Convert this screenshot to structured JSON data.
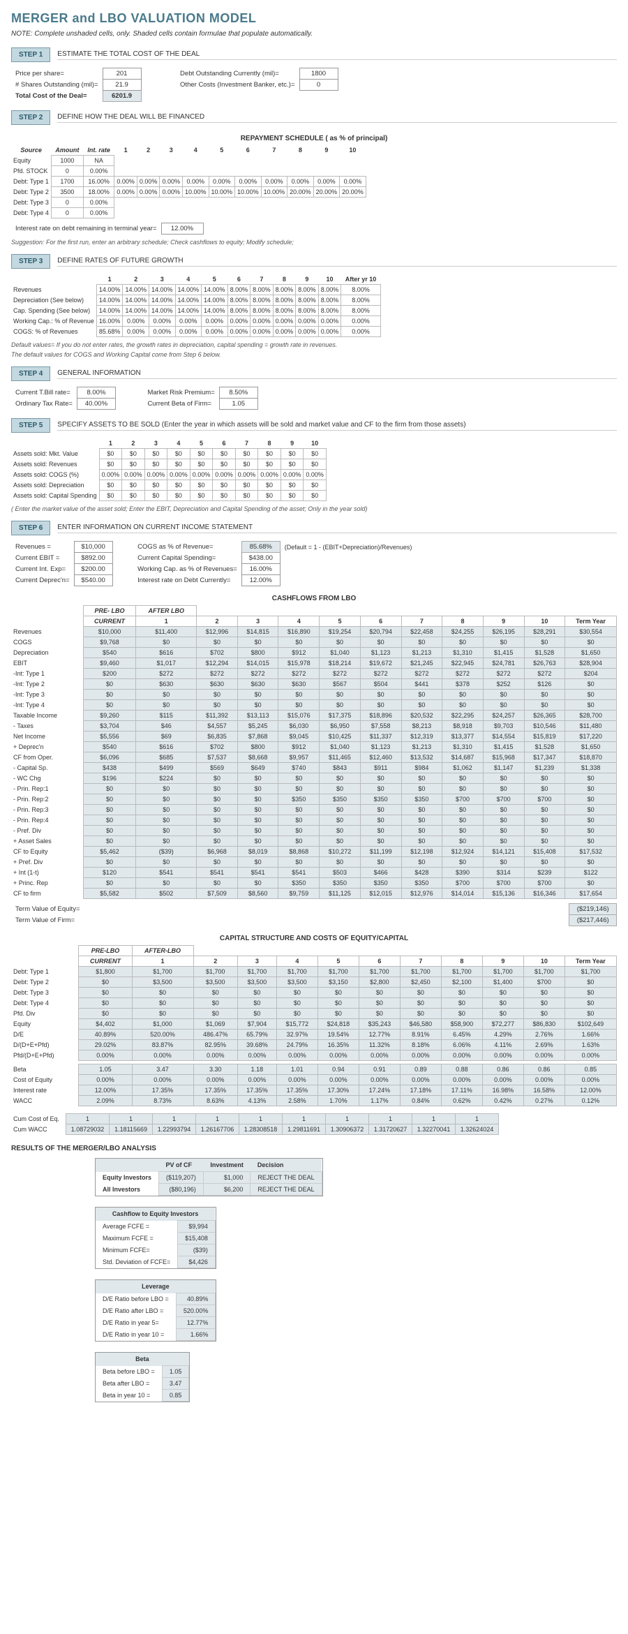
{
  "title": "MERGER and LBO VALUATION MODEL",
  "note": "NOTE: Complete unshaded cells, only.  Shaded cells contain formulae that populate automatically.",
  "steps": {
    "s1": {
      "label": "STEP 1",
      "title": "ESTIMATE THE TOTAL COST OF THE DEAL"
    },
    "s2": {
      "label": "STEP 2",
      "title": "DEFINE HOW THE DEAL WILL BE FINANCED"
    },
    "s3": {
      "label": "STEP 3",
      "title": "DEFINE RATES OF FUTURE GROWTH"
    },
    "s4": {
      "label": "STEP 4",
      "title": "GENERAL INFORMATION"
    },
    "s5": {
      "label": "STEP 5",
      "title": "SPECIFY  ASSETS TO BE SOLD (Enter the year in which assets will be sold and market value and CF to the firm from those assets)"
    },
    "s6": {
      "label": "STEP 6",
      "title": "ENTER INFORMATION ON CURRENT INCOME STATEMENT"
    }
  },
  "step1": {
    "pps_label": "Price per share=",
    "pps": "201",
    "shares_label": "# Shares Outstanding (mil)=",
    "shares": "21.9",
    "total_label": "Total Cost of the Deal=",
    "total": "6201.9",
    "debt_label": "Debt Outstanding Currently (mil)=",
    "debt": "1800",
    "other_label": "Other Costs (Investment Banker, etc.)=",
    "other": "0"
  },
  "step2": {
    "repay_hdr": "REPAYMENT SCHEDULE ( as % of principal)",
    "cols": [
      "Source",
      "Amount",
      "Int. rate",
      "1",
      "2",
      "3",
      "4",
      "5",
      "6",
      "7",
      "8",
      "9",
      "10"
    ],
    "rows": [
      [
        "Equity",
        "1000",
        "NA",
        "",
        "",
        "",
        "",
        "",
        "",
        "",
        "",
        "",
        ""
      ],
      [
        "Pfd. STOCK",
        "0",
        "0.00%",
        "",
        "",
        "",
        "",
        "",
        "",
        "",
        "",
        "",
        ""
      ],
      [
        "Debt: Type 1",
        "1700",
        "16.00%",
        "0.00%",
        "0.00%",
        "0.00%",
        "0.00%",
        "0.00%",
        "0.00%",
        "0.00%",
        "0.00%",
        "0.00%",
        "0.00%"
      ],
      [
        "Debt: Type 2",
        "3500",
        "18.00%",
        "0.00%",
        "0.00%",
        "0.00%",
        "10.00%",
        "10.00%",
        "10.00%",
        "10.00%",
        "20.00%",
        "20.00%",
        "20.00%"
      ],
      [
        "Debt: Type 3",
        "0",
        "0.00%",
        "",
        "",
        "",
        "",
        "",
        "",
        "",
        "",
        "",
        ""
      ],
      [
        "Debt: Type 4",
        "0",
        "0.00%",
        "",
        "",
        "",
        "",
        "",
        "",
        "",
        "",
        "",
        ""
      ]
    ],
    "term_rate_label": "Interest rate on debt remaining in terminal year=",
    "term_rate": "12.00%",
    "suggest": "Suggestion: For the first run, enter an arbitrary schedule; Check cashflows to equity; Modify schedule;"
  },
  "step3": {
    "cols": [
      "1",
      "2",
      "3",
      "4",
      "5",
      "6",
      "7",
      "8",
      "9",
      "10",
      "After yr 10"
    ],
    "rows": [
      [
        "Revenues",
        "14.00%",
        "14.00%",
        "14.00%",
        "14.00%",
        "14.00%",
        "8.00%",
        "8.00%",
        "8.00%",
        "8.00%",
        "8.00%",
        "8.00%"
      ],
      [
        "Depreciation (See below)",
        "14.00%",
        "14.00%",
        "14.00%",
        "14.00%",
        "14.00%",
        "8.00%",
        "8.00%",
        "8.00%",
        "8.00%",
        "8.00%",
        "8.00%"
      ],
      [
        "Cap. Spending (See below)",
        "14.00%",
        "14.00%",
        "14.00%",
        "14.00%",
        "14.00%",
        "8.00%",
        "8.00%",
        "8.00%",
        "8.00%",
        "8.00%",
        "8.00%"
      ],
      [
        "Working Cap.: % of Revenue",
        "16.00%",
        "0.00%",
        "0.00%",
        "0.00%",
        "0.00%",
        "0.00%",
        "0.00%",
        "0.00%",
        "0.00%",
        "0.00%",
        "0.00%"
      ],
      [
        "COGS: % of Revenues",
        "85.68%",
        "0.00%",
        "0.00%",
        "0.00%",
        "0.00%",
        "0.00%",
        "0.00%",
        "0.00%",
        "0.00%",
        "0.00%",
        "0.00%"
      ]
    ],
    "note1": "Default values= If you do not enter rates, the growth rates in depreciation, capital spending  = growth rate in revenues.",
    "note2": "The default values for COGS and Working Capital come from Step 6 below."
  },
  "step4": {
    "tbill_label": "Current T.Bill rate=",
    "tbill": "8.00%",
    "tax_label": "Ordinary Tax Rate=",
    "tax": "40.00%",
    "mrp_label": "Market Risk Premium=",
    "mrp": "8.50%",
    "beta_label": "Current Beta of Firm=",
    "beta": "1.05"
  },
  "step5": {
    "cols": [
      "1",
      "2",
      "3",
      "4",
      "5",
      "6",
      "7",
      "8",
      "9",
      "10"
    ],
    "rows": [
      [
        "Assets sold: Mkt. Value",
        "$0",
        "$0",
        "$0",
        "$0",
        "$0",
        "$0",
        "$0",
        "$0",
        "$0",
        "$0"
      ],
      [
        "Assets sold: Revenues",
        "$0",
        "$0",
        "$0",
        "$0",
        "$0",
        "$0",
        "$0",
        "$0",
        "$0",
        "$0"
      ],
      [
        "Assets sold: COGS (%)",
        "0.00%",
        "0.00%",
        "0.00%",
        "0.00%",
        "0.00%",
        "0.00%",
        "0.00%",
        "0.00%",
        "0.00%",
        "0.00%"
      ],
      [
        "Assets sold: Depreciation",
        "$0",
        "$0",
        "$0",
        "$0",
        "$0",
        "$0",
        "$0",
        "$0",
        "$0",
        "$0"
      ],
      [
        "Assets sold: Capital Spending",
        "$0",
        "$0",
        "$0",
        "$0",
        "$0",
        "$0",
        "$0",
        "$0",
        "$0",
        "$0"
      ]
    ],
    "note": "( Enter the market value of the asset sold; Enter the EBIT, Depreciation and Capital Spending of the asset; Only in the year sold)"
  },
  "step6": {
    "left": [
      [
        "Revenues =",
        "$10,000"
      ],
      [
        "Current EBIT =",
        "$892.00"
      ],
      [
        "Current Int. Exp=",
        "$200.00"
      ],
      [
        "Current Deprec'n=",
        "$540.00"
      ]
    ],
    "right": [
      [
        "COGS as % of Revenue=",
        "85.68%",
        "(Default = 1 - (EBIT+Depreciation)/Revenues)"
      ],
      [
        "Current Capital Spending=",
        "$438.00",
        ""
      ],
      [
        "Working Cap. as % of Revenues=",
        "16.00%",
        ""
      ],
      [
        "Interest rate on Debt Currently=",
        "12.00%",
        ""
      ]
    ],
    "cf_hdr": "CASHFLOWS FROM LBO",
    "cf_cols": [
      "",
      "PRE- LBO CURRENT",
      "AFTER LBO 1",
      "2",
      "3",
      "4",
      "5",
      "6",
      "7",
      "8",
      "9",
      "10",
      "Term Year"
    ],
    "cf_rows": [
      [
        "Revenues",
        "$10,000",
        "$11,400",
        "$12,996",
        "$14,815",
        "$16,890",
        "$19,254",
        "$20,794",
        "$22,458",
        "$24,255",
        "$26,195",
        "$28,291",
        "$30,554"
      ],
      [
        "COGS",
        "$9,768",
        "$0",
        "$0",
        "$0",
        "$0",
        "$0",
        "$0",
        "$0",
        "$0",
        "$0",
        "$0",
        "$0"
      ],
      [
        "Depreciation",
        "$540",
        "$616",
        "$702",
        "$800",
        "$912",
        "$1,040",
        "$1,123",
        "$1,213",
        "$1,310",
        "$1,415",
        "$1,528",
        "$1,650"
      ],
      [
        "EBIT",
        "$9,460",
        "$1,017",
        "$12,294",
        "$14,015",
        "$15,978",
        "$18,214",
        "$19,672",
        "$21,245",
        "$22,945",
        "$24,781",
        "$26,763",
        "$28,904"
      ],
      [
        "-Int: Type 1",
        "$200",
        "$272",
        "$272",
        "$272",
        "$272",
        "$272",
        "$272",
        "$272",
        "$272",
        "$272",
        "$272",
        "$204"
      ],
      [
        "-Int: Type 2",
        "$0",
        "$630",
        "$630",
        "$630",
        "$630",
        "$567",
        "$504",
        "$441",
        "$378",
        "$252",
        "$126",
        "$0"
      ],
      [
        "-Int: Type 3",
        "$0",
        "$0",
        "$0",
        "$0",
        "$0",
        "$0",
        "$0",
        "$0",
        "$0",
        "$0",
        "$0",
        "$0"
      ],
      [
        "-Int: Type 4",
        "$0",
        "$0",
        "$0",
        "$0",
        "$0",
        "$0",
        "$0",
        "$0",
        "$0",
        "$0",
        "$0",
        "$0"
      ],
      [
        "Taxable Income",
        "$9,260",
        "$115",
        "$11,392",
        "$13,113",
        "$15,076",
        "$17,375",
        "$18,896",
        "$20,532",
        "$22,295",
        "$24,257",
        "$26,365",
        "$28,700"
      ],
      [
        "- Taxes",
        "$3,704",
        "$46",
        "$4,557",
        "$5,245",
        "$6,030",
        "$6,950",
        "$7,558",
        "$8,213",
        "$8,918",
        "$9,703",
        "$10,546",
        "$11,480"
      ],
      [
        "Net Income",
        "$5,556",
        "$69",
        "$6,835",
        "$7,868",
        "$9,045",
        "$10,425",
        "$11,337",
        "$12,319",
        "$13,377",
        "$14,554",
        "$15,819",
        "$17,220"
      ],
      [
        "+ Deprec'n",
        "$540",
        "$616",
        "$702",
        "$800",
        "$912",
        "$1,040",
        "$1,123",
        "$1,213",
        "$1,310",
        "$1,415",
        "$1,528",
        "$1,650"
      ],
      [
        "CF from Oper.",
        "$6,096",
        "$685",
        "$7,537",
        "$8,668",
        "$9,957",
        "$11,465",
        "$12,460",
        "$13,532",
        "$14,687",
        "$15,968",
        "$17,347",
        "$18,870"
      ],
      [
        "- Capital Sp.",
        "$438",
        "$499",
        "$569",
        "$649",
        "$740",
        "$843",
        "$911",
        "$984",
        "$1,062",
        "$1,147",
        "$1,239",
        "$1,338"
      ],
      [
        "- WC Chg",
        "$196",
        "$224",
        "$0",
        "$0",
        "$0",
        "$0",
        "$0",
        "$0",
        "$0",
        "$0",
        "$0",
        "$0"
      ],
      [
        "- Prin. Rep:1",
        "$0",
        "$0",
        "$0",
        "$0",
        "$0",
        "$0",
        "$0",
        "$0",
        "$0",
        "$0",
        "$0",
        "$0"
      ],
      [
        "- Prin. Rep:2",
        "$0",
        "$0",
        "$0",
        "$0",
        "$350",
        "$350",
        "$350",
        "$350",
        "$700",
        "$700",
        "$700",
        "$0"
      ],
      [
        "- Prin. Rep:3",
        "$0",
        "$0",
        "$0",
        "$0",
        "$0",
        "$0",
        "$0",
        "$0",
        "$0",
        "$0",
        "$0",
        "$0"
      ],
      [
        "- Prin. Rep:4",
        "$0",
        "$0",
        "$0",
        "$0",
        "$0",
        "$0",
        "$0",
        "$0",
        "$0",
        "$0",
        "$0",
        "$0"
      ],
      [
        "- Pref. Div",
        "$0",
        "$0",
        "$0",
        "$0",
        "$0",
        "$0",
        "$0",
        "$0",
        "$0",
        "$0",
        "$0",
        "$0"
      ],
      [
        "+ Asset Sales",
        "$0",
        "$0",
        "$0",
        "$0",
        "$0",
        "$0",
        "$0",
        "$0",
        "$0",
        "$0",
        "$0",
        "$0"
      ],
      [
        "CF to Equity",
        "$5,462",
        "($39)",
        "$6,968",
        "$8,019",
        "$8,868",
        "$10,272",
        "$11,199",
        "$12,198",
        "$12,924",
        "$14,121",
        "$15,408",
        "$17,532"
      ],
      [
        "+ Pref. Div",
        "$0",
        "$0",
        "$0",
        "$0",
        "$0",
        "$0",
        "$0",
        "$0",
        "$0",
        "$0",
        "$0",
        "$0"
      ],
      [
        "+ Int (1-t)",
        "$120",
        "$541",
        "$541",
        "$541",
        "$541",
        "$503",
        "$466",
        "$428",
        "$390",
        "$314",
        "$239",
        "$122"
      ],
      [
        "+ Princ. Rep",
        "$0",
        "$0",
        "$0",
        "$0",
        "$350",
        "$350",
        "$350",
        "$350",
        "$700",
        "$700",
        "$700",
        "$0"
      ],
      [
        "CF to firm",
        "$5,582",
        "$502",
        "$7,509",
        "$8,560",
        "$9,759",
        "$11,125",
        "$12,015",
        "$12,976",
        "$14,014",
        "$15,136",
        "$16,346",
        "$17,654"
      ]
    ],
    "tv_eq_label": "Term Value of Equity=",
    "tv_eq": "($219,146)",
    "tv_firm_label": "Term Value of Firm=",
    "tv_firm": "($217,446)"
  },
  "capstruct": {
    "hdr": "CAPITAL STRUCTURE AND COSTS OF EQUITY/CAPITAL",
    "rows": [
      [
        "Debt: Type 1",
        "$1,800",
        "$1,700",
        "$1,700",
        "$1,700",
        "$1,700",
        "$1,700",
        "$1,700",
        "$1,700",
        "$1,700",
        "$1,700",
        "$1,700",
        "$1,700"
      ],
      [
        "Debt: Type 2",
        "$0",
        "$3,500",
        "$3,500",
        "$3,500",
        "$3,500",
        "$3,150",
        "$2,800",
        "$2,450",
        "$2,100",
        "$1,400",
        "$700",
        "$0"
      ],
      [
        "Debt: Type 3",
        "$0",
        "$0",
        "$0",
        "$0",
        "$0",
        "$0",
        "$0",
        "$0",
        "$0",
        "$0",
        "$0",
        "$0"
      ],
      [
        "Debt: Type 4",
        "$0",
        "$0",
        "$0",
        "$0",
        "$0",
        "$0",
        "$0",
        "$0",
        "$0",
        "$0",
        "$0",
        "$0"
      ],
      [
        "Pfd. Div",
        "$0",
        "$0",
        "$0",
        "$0",
        "$0",
        "$0",
        "$0",
        "$0",
        "$0",
        "$0",
        "$0",
        "$0"
      ],
      [
        "Equity",
        "$4,402",
        "$1,000",
        "$1,069",
        "$7,904",
        "$15,772",
        "$24,818",
        "$35,243",
        "$46,580",
        "$58,900",
        "$72,277",
        "$86,830",
        "$102,649"
      ],
      [
        "D/E",
        "40.89%",
        "520.00%",
        "486.47%",
        "65.79%",
        "32.97%",
        "19.54%",
        "12.77%",
        "8.91%",
        "6.45%",
        "4.29%",
        "2.76%",
        "1.66%"
      ],
      [
        "D/(D+E+Pfd)",
        "29.02%",
        "83.87%",
        "82.95%",
        "39.68%",
        "24.79%",
        "16.35%",
        "11.32%",
        "8.18%",
        "6.06%",
        "4.11%",
        "2.69%",
        "1.63%"
      ],
      [
        "Pfd/(D+E+Pfd)",
        "0.00%",
        "0.00%",
        "0.00%",
        "0.00%",
        "0.00%",
        "0.00%",
        "0.00%",
        "0.00%",
        "0.00%",
        "0.00%",
        "0.00%",
        "0.00%"
      ],
      [
        "",
        "",
        "",
        "",
        "",
        "",
        "",
        "",
        "",
        "",
        "",
        "",
        ""
      ],
      [
        "Beta",
        "1.05",
        "3.47",
        "3.30",
        "1.18",
        "1.01",
        "0.94",
        "0.91",
        "0.89",
        "0.88",
        "0.86",
        "0.86",
        "0.85"
      ],
      [
        "Cost of Equity",
        "0.00%",
        "0.00%",
        "0.00%",
        "0.00%",
        "0.00%",
        "0.00%",
        "0.00%",
        "0.00%",
        "0.00%",
        "0.00%",
        "0.00%",
        "0.00%"
      ],
      [
        "Interest rate",
        "12.00%",
        "17.35%",
        "17.35%",
        "17.35%",
        "17.35%",
        "17.30%",
        "17.24%",
        "17.18%",
        "17.11%",
        "16.98%",
        "16.58%",
        "12.00%"
      ],
      [
        "WACC",
        "2.09%",
        "8.73%",
        "8.63%",
        "4.13%",
        "2.58%",
        "1.70%",
        "1.17%",
        "0.84%",
        "0.62%",
        "0.42%",
        "0.27%",
        "0.12%"
      ]
    ],
    "cum_eq_label": "Cum Cost of Eq.",
    "cum_eq": [
      "1",
      "1",
      "1",
      "1",
      "1",
      "1",
      "1",
      "1",
      "1",
      "1"
    ],
    "cum_wacc_label": "Cum WACC",
    "cum_wacc": [
      "1.08729032",
      "1.18115669",
      "1.22993794",
      "1.26167706",
      "1.28308518",
      "1.29811691",
      "1.30906372",
      "1.31720627",
      "1.32270041",
      "1.32624024"
    ]
  },
  "results": {
    "hdr": "RESULTS OF THE MERGER/LBO ANALYSIS",
    "decision_hdr": [
      "",
      "PV of CF",
      "Investment",
      "Decision"
    ],
    "decision": [
      [
        "Equity Investors",
        "($119,207)",
        "$1,000",
        "REJECT THE DEAL"
      ],
      [
        "All Investors",
        "($80,196)",
        "$6,200",
        "REJECT THE DEAL"
      ]
    ],
    "cfei_hdr": "Cashflow to Equity Investors",
    "cfei": [
      [
        "Average FCFE =",
        "$9,994"
      ],
      [
        "Maximum FCFE =",
        "$15,408"
      ],
      [
        "Minimum FCFE=",
        "($39)"
      ],
      [
        "Std. Deviation of FCFE=",
        "$4,426"
      ]
    ],
    "lev_hdr": "Leverage",
    "lev": [
      [
        "D/E Ratio before LBO =",
        "40.89%"
      ],
      [
        "D/E Ratio after LBO =",
        "520.00%"
      ],
      [
        "D/E Ratio in year 5=",
        "12.77%"
      ],
      [
        "D/E Ratio in year 10 =",
        "1.66%"
      ]
    ],
    "beta_hdr": "Beta",
    "beta": [
      [
        "Beta before LBO =",
        "1.05"
      ],
      [
        "Beta after LBO =",
        "3.47"
      ],
      [
        "Beta in year 10 =",
        "0.85"
      ]
    ]
  }
}
